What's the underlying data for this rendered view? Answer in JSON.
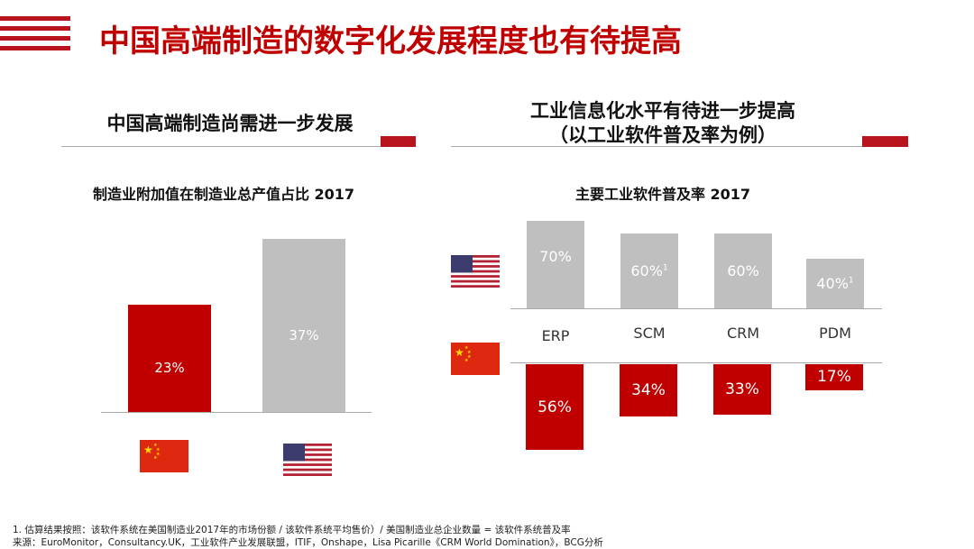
{
  "header": {
    "title": "中国高端制造的数字化发展程度也有待提高"
  },
  "left_panel": {
    "heading": "中国高端制造尚需进一步发展"
  },
  "right_panel": {
    "heading_line1": "工业信息化水平有待进一步提高",
    "heading_line2": "（以工业软件普及率为例）"
  },
  "countries": {
    "china": "China",
    "usa": "USA"
  },
  "colors": {
    "accent": "#c00000",
    "china_bar": "#c00000",
    "usa_bar": "#bfbfbf"
  },
  "chart_data": [
    {
      "type": "bar",
      "title": "制造业附加值在制造业总产值占比 2017",
      "categories": [
        "China",
        "USA"
      ],
      "values": [
        23,
        37
      ],
      "value_labels": [
        "23%",
        "37%"
      ],
      "ylim": [
        0,
        40
      ],
      "xlabel": "",
      "ylabel": ""
    },
    {
      "type": "bar",
      "title": "主要工业软件普及率 2017",
      "categories": [
        "ERP",
        "SCM",
        "CRM",
        "PDM"
      ],
      "series": [
        {
          "name": "USA",
          "values": [
            70,
            60,
            60,
            40
          ],
          "labels": [
            "70%",
            "60%",
            "60%",
            "40%"
          ],
          "superscripts": [
            "",
            "1",
            "",
            "1"
          ]
        },
        {
          "name": "China",
          "values": [
            56,
            34,
            33,
            17
          ],
          "labels": [
            "56%",
            "34%",
            "33%",
            "17%"
          ]
        }
      ],
      "ylim": [
        -60,
        75
      ],
      "xlabel": "",
      "ylabel": ""
    }
  ],
  "footnotes": {
    "note1": "1. 估算结果按照：该软件系统在美国制造业2017年的市场份额 / 该软件系统平均售价）/ 美国制造业总企业数量 = 该软件系统普及率",
    "source": "来源：EuroMonitor，Consultancy.UK，工业软件产业发展联盟，ITIF，Onshape，Lisa Picarille《CRM World Domination》，BCG分析"
  }
}
